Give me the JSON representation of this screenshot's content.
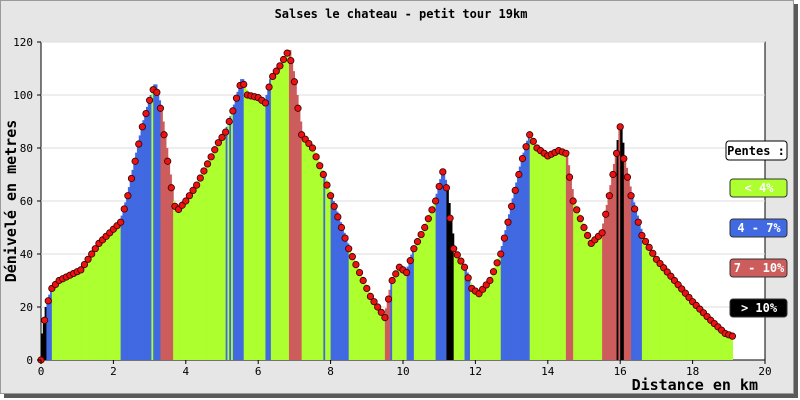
{
  "chart_data": {
    "type": "area",
    "title": "Salses le chateau - petit tour 19km",
    "xlabel": "Distance en km",
    "ylabel": "Dénivelé en metres",
    "xlim": [
      0,
      20
    ],
    "ylim": [
      0,
      120
    ],
    "xticks": [
      "0",
      "2",
      "4",
      "6",
      "8",
      "10",
      "12",
      "14",
      "16",
      "18",
      "20"
    ],
    "yticks": [
      "0",
      "20",
      "40",
      "60",
      "80",
      "100",
      "120"
    ],
    "grid": true,
    "legend_position": "right",
    "legend_title": "Pentes :",
    "slope_classes": [
      {
        "label": "< 4%",
        "color": "#adff2f",
        "text_color": "#ffffff"
      },
      {
        "label": "4 - 7%",
        "color": "#4169e1",
        "text_color": "#ffffff"
      },
      {
        "label": "7 - 10%",
        "color": "#cd5c5c",
        "text_color": "#ffffff"
      },
      {
        "label": "> 10%",
        "color": "#000000",
        "text_color": "#ffffff"
      }
    ],
    "profile": [
      [
        0,
        0
      ],
      [
        0.05,
        10
      ],
      [
        0.15,
        20
      ],
      [
        0.3,
        27
      ],
      [
        0.5,
        30
      ],
      [
        0.8,
        32
      ],
      [
        1.1,
        34
      ],
      [
        1.3,
        38
      ],
      [
        1.6,
        44
      ],
      [
        1.9,
        48
      ],
      [
        2.2,
        52
      ],
      [
        2.4,
        62
      ],
      [
        2.6,
        75
      ],
      [
        2.8,
        88
      ],
      [
        3.0,
        98
      ],
      [
        3.15,
        104
      ],
      [
        3.3,
        95
      ],
      [
        3.5,
        75
      ],
      [
        3.65,
        60
      ],
      [
        3.75,
        56
      ],
      [
        4.0,
        60
      ],
      [
        4.3,
        66
      ],
      [
        4.6,
        74
      ],
      [
        4.9,
        82
      ],
      [
        5.1,
        86
      ],
      [
        5.3,
        94
      ],
      [
        5.55,
        106
      ],
      [
        5.7,
        100
      ],
      [
        6.0,
        99
      ],
      [
        6.2,
        97
      ],
      [
        6.35,
        106
      ],
      [
        6.6,
        111
      ],
      [
        6.85,
        117
      ],
      [
        7.0,
        105
      ],
      [
        7.2,
        85
      ],
      [
        7.5,
        80
      ],
      [
        7.8,
        70
      ],
      [
        8.0,
        62
      ],
      [
        8.3,
        50
      ],
      [
        8.5,
        42
      ],
      [
        8.8,
        33
      ],
      [
        9.1,
        24
      ],
      [
        9.3,
        20
      ],
      [
        9.5,
        16
      ],
      [
        9.7,
        30
      ],
      [
        9.9,
        35
      ],
      [
        10.1,
        33
      ],
      [
        10.3,
        42
      ],
      [
        10.6,
        50
      ],
      [
        10.9,
        60
      ],
      [
        11.1,
        71
      ],
      [
        11.2,
        65
      ],
      [
        11.4,
        42
      ],
      [
        11.7,
        35
      ],
      [
        11.9,
        27
      ],
      [
        12.1,
        25
      ],
      [
        12.4,
        30
      ],
      [
        12.7,
        40
      ],
      [
        13.0,
        58
      ],
      [
        13.3,
        76
      ],
      [
        13.5,
        85
      ],
      [
        13.7,
        80
      ],
      [
        14.0,
        77
      ],
      [
        14.3,
        79
      ],
      [
        14.5,
        78
      ],
      [
        14.7,
        60
      ],
      [
        15.0,
        50
      ],
      [
        15.2,
        44
      ],
      [
        15.5,
        48
      ],
      [
        15.7,
        62
      ],
      [
        15.9,
        78
      ],
      [
        16.0,
        88
      ],
      [
        16.1,
        76
      ],
      [
        16.3,
        62
      ],
      [
        16.6,
        47
      ],
      [
        17.0,
        38
      ],
      [
        17.5,
        30
      ],
      [
        18.0,
        22
      ],
      [
        18.5,
        15
      ],
      [
        18.9,
        10
      ],
      [
        19.1,
        9
      ]
    ]
  }
}
